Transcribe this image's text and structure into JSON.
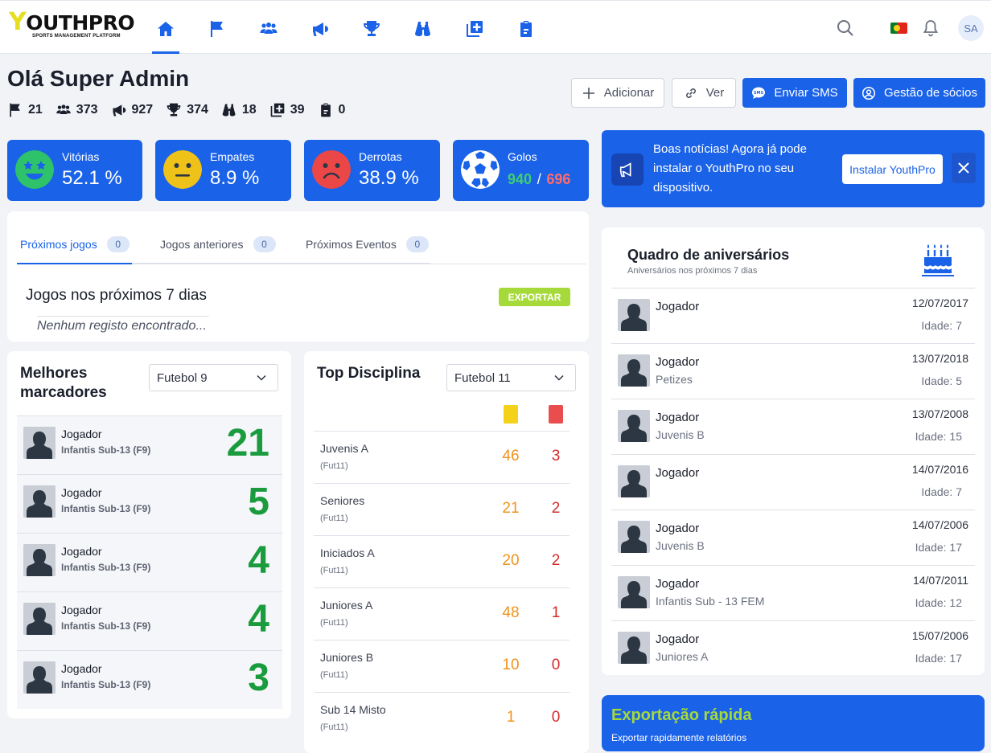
{
  "brand": {
    "letter": "Y",
    "name": "OUTHPRO",
    "tagline": "SPORTS MANAGEMENT PLATFORM"
  },
  "nav": {
    "items": [
      "home-icon",
      "flag-icon",
      "users-icon",
      "megaphone-icon",
      "trophy-icon",
      "binoculars-icon",
      "add-copy-icon",
      "clipboard-icon"
    ],
    "user_initials": "SA",
    "accent": "#1a62e8"
  },
  "greeting": "Olá Super Admin",
  "stats": [
    {
      "icon": "flag-icon",
      "value": "21"
    },
    {
      "icon": "users-icon",
      "value": "373"
    },
    {
      "icon": "megaphone-icon",
      "value": "927"
    },
    {
      "icon": "trophy-icon",
      "value": "374"
    },
    {
      "icon": "binoculars-icon",
      "value": "18"
    },
    {
      "icon": "add-copy-icon",
      "value": "39"
    },
    {
      "icon": "clipboard-icon",
      "value": "0"
    }
  ],
  "actions": {
    "add": "Adicionar",
    "view": "Ver",
    "sms": "Enviar SMS",
    "members": "Gestão de sócios"
  },
  "kpis": {
    "wins": {
      "label": "Vitórias",
      "value": "52.1 %"
    },
    "draws": {
      "label": "Empates",
      "value": "8.9 %"
    },
    "losses": {
      "label": "Derrotas",
      "value": "38.9 %"
    },
    "goals": {
      "label": "Golos",
      "scored": "940",
      "sep": "/",
      "conceded": "696"
    }
  },
  "banner": {
    "text": "Boas notícias! Agora já pode instalar o YouthPro no seu dispositivo.",
    "install": "Instalar YouthPro"
  },
  "games": {
    "tabs": [
      {
        "label": "Próximos jogos",
        "count": "0"
      },
      {
        "label": "Jogos anteriores",
        "count": "0"
      },
      {
        "label": "Próximos Eventos",
        "count": "0"
      }
    ],
    "title": "Jogos nos próximos 7 dias",
    "export": "EXPORTAR",
    "empty": "Nenhum registo encontrado..."
  },
  "scorers": {
    "title": "Melhores marcadores",
    "select": "Futebol 9",
    "rows": [
      {
        "name": "Jogador",
        "team": "Infantis Sub-13 (F9)",
        "goals": "21"
      },
      {
        "name": "Jogador",
        "team": "Infantis Sub-13 (F9)",
        "goals": "5"
      },
      {
        "name": "Jogador",
        "team": "Infantis Sub-13 (F9)",
        "goals": "4"
      },
      {
        "name": "Jogador",
        "team": "Infantis Sub-13 (F9)",
        "goals": "4"
      },
      {
        "name": "Jogador",
        "team": "Infantis Sub-13 (F9)",
        "goals": "3"
      }
    ]
  },
  "discipline": {
    "title": "Top Disciplina",
    "select": "Futebol 11",
    "rows": [
      {
        "team": "Juvenis A",
        "sub": "(Fut11)",
        "yellow": "46",
        "red": "3"
      },
      {
        "team": "Seniores",
        "sub": "(Fut11)",
        "yellow": "21",
        "red": "2"
      },
      {
        "team": "Iniciados A",
        "sub": "(Fut11)",
        "yellow": "20",
        "red": "2"
      },
      {
        "team": "Juniores A",
        "sub": "(Fut11)",
        "yellow": "48",
        "red": "1"
      },
      {
        "team": "Juniores B",
        "sub": "(Fut11)",
        "yellow": "10",
        "red": "0"
      },
      {
        "team": "Sub 14 Misto",
        "sub": "(Fut11)",
        "yellow": "1",
        "red": "0"
      }
    ]
  },
  "birthdays": {
    "title": "Quadro de aniversários",
    "subtitle": "Aniversários nos próximos 7 dias",
    "rows": [
      {
        "name": "Jogador",
        "team": "",
        "date": "12/07/2017",
        "age": "Idade: 7"
      },
      {
        "name": "Jogador",
        "team": "Petizes",
        "date": "13/07/2018",
        "age": "Idade: 5"
      },
      {
        "name": "Jogador",
        "team": "Juvenis B",
        "date": "13/07/2008",
        "age": "Idade: 15"
      },
      {
        "name": "Jogador",
        "team": "",
        "date": "14/07/2016",
        "age": "Idade: 7"
      },
      {
        "name": "Jogador",
        "team": "Juvenis B",
        "date": "14/07/2006",
        "age": "Idade: 17"
      },
      {
        "name": "Jogador",
        "team": "Infantis Sub - 13 FEM",
        "date": "14/07/2011",
        "age": "Idade: 12"
      },
      {
        "name": "Jogador",
        "team": "Juniores A",
        "date": "15/07/2006",
        "age": "Idade: 17"
      }
    ]
  },
  "quick_export": {
    "title": "Exportação rápida",
    "subtitle": "Exportar rapidamente relatórios"
  }
}
